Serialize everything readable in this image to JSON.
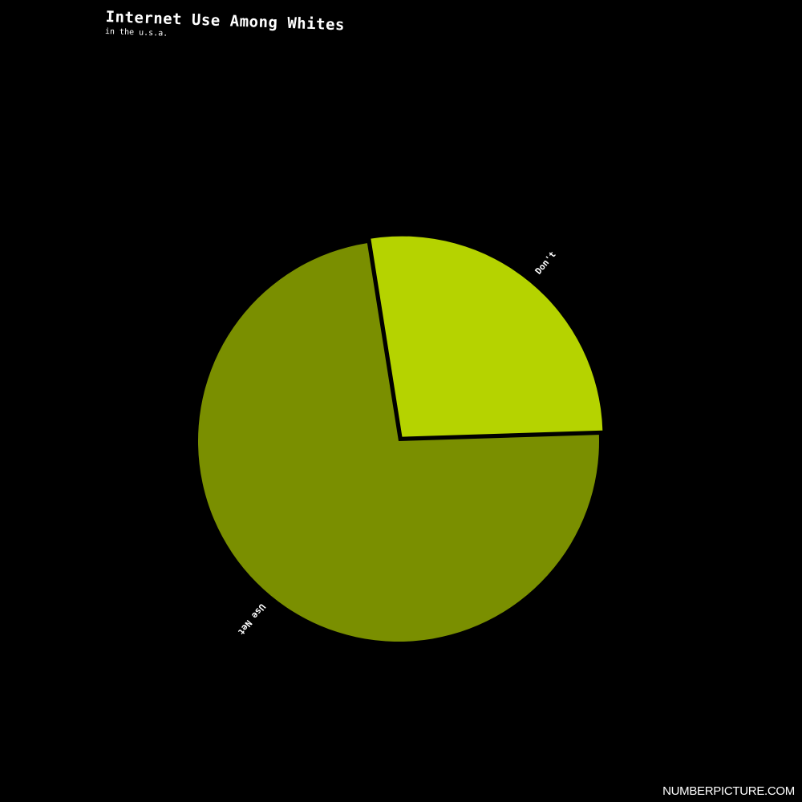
{
  "chart_data": {
    "type": "pie",
    "title": "Internet Use Among Whites",
    "subtitle": "in the u.s.a.",
    "slices": [
      {
        "label": "Don't",
        "value": 27,
        "color": "#b5d300",
        "exploded": true
      },
      {
        "label": "Use Net",
        "value": 73,
        "color": "#7a8f00",
        "exploded": false
      }
    ],
    "background": "#000000",
    "legend": "none"
  },
  "credit": "NUMBERPICTURE.COM"
}
